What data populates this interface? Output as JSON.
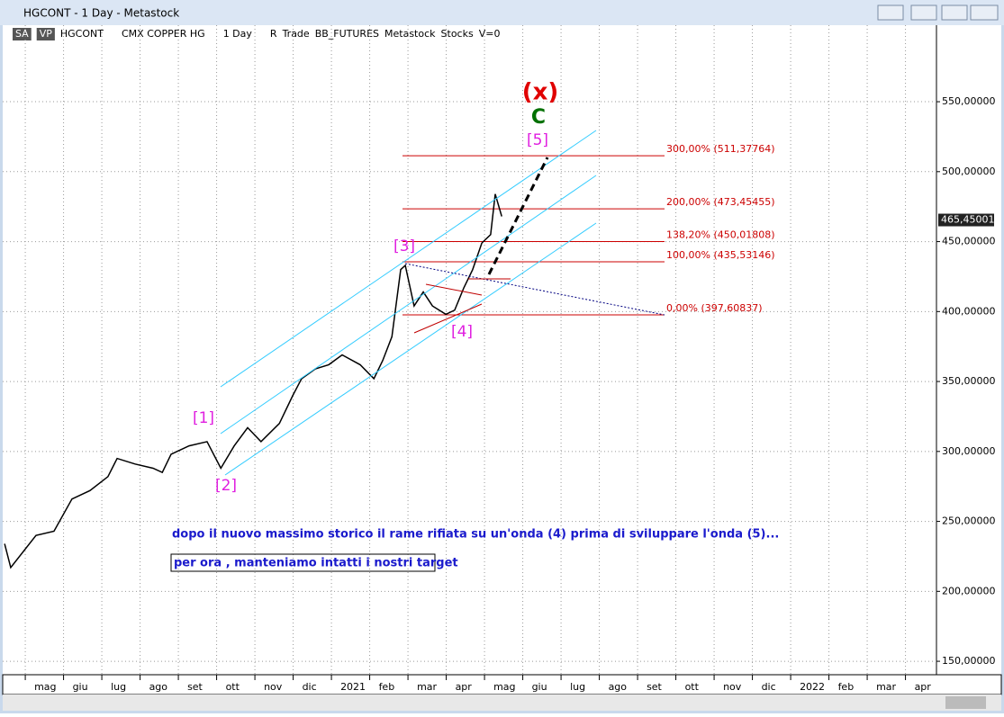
{
  "window": {
    "title": "HGCONT - 1 Day - Metastock",
    "toolbar": [
      "SA",
      "VP",
      "HGCONT",
      "CMX COPPER HG",
      "1 Day",
      "R",
      "Trade",
      "BB_FUTURES",
      "Metastock",
      "Stocks",
      "V=0"
    ]
  },
  "chart_data": {
    "type": "line",
    "color": "#000000",
    "x": [
      -0.54,
      -0.38,
      0.28,
      0.75,
      1.22,
      1.69,
      2.16,
      2.4,
      2.87,
      3.34,
      3.58,
      3.81,
      4.28,
      4.75,
      5.11,
      5.46,
      5.81,
      6.16,
      6.64,
      6.99,
      7.22,
      7.58,
      7.93,
      8.28,
      8.75,
      9.11,
      9.34,
      9.58,
      9.81,
      9.93,
      10.16,
      10.4,
      10.64,
      10.99,
      11.22,
      11.46,
      11.69,
      11.93,
      12.16,
      12.28,
      12.45
    ],
    "values": [
      234,
      217,
      240,
      243,
      266,
      272,
      282,
      295,
      291,
      288,
      285,
      298,
      304,
      307,
      288,
      304,
      317,
      307,
      320,
      340,
      352,
      359,
      362,
      369,
      362,
      352,
      365,
      382,
      430,
      433,
      404,
      414,
      404,
      398,
      401,
      417,
      430,
      449,
      455,
      484,
      468
    ],
    "xlim": [
      -0.59,
      23.81
    ],
    "ylim": [
      140.4,
      604.7
    ],
    "xticks": [
      {
        "value": 0,
        "label": "mag"
      },
      {
        "value": 1,
        "label": "giu"
      },
      {
        "value": 2,
        "label": "lug"
      },
      {
        "value": 3,
        "label": "ago"
      },
      {
        "value": 4,
        "label": "set"
      },
      {
        "value": 5,
        "label": "ott"
      },
      {
        "value": 6,
        "label": "nov"
      },
      {
        "value": 7,
        "label": "dic"
      },
      {
        "value": 8,
        "label": "2021"
      },
      {
        "value": 9,
        "label": "feb"
      },
      {
        "value": 10,
        "label": "mar"
      },
      {
        "value": 11,
        "label": "apr"
      },
      {
        "value": 12,
        "label": "mag"
      },
      {
        "value": 13,
        "label": "giu"
      },
      {
        "value": 14,
        "label": "lug"
      },
      {
        "value": 15,
        "label": "ago"
      },
      {
        "value": 16,
        "label": "set"
      },
      {
        "value": 17,
        "label": "ott"
      },
      {
        "value": 18,
        "label": "nov"
      },
      {
        "value": 19,
        "label": "dic"
      },
      {
        "value": 20,
        "label": "2022"
      },
      {
        "value": 21,
        "label": "feb"
      },
      {
        "value": 22,
        "label": "mar"
      },
      {
        "value": 23,
        "label": "apr"
      }
    ],
    "yticks": [
      {
        "value": 150,
        "label": "150,00000"
      },
      {
        "value": 200,
        "label": "200,00000"
      },
      {
        "value": 250,
        "label": "250,00000"
      },
      {
        "value": 300,
        "label": "300,00000"
      },
      {
        "value": 350,
        "label": "350,00000"
      },
      {
        "value": 400,
        "label": "400,00000"
      },
      {
        "value": 450,
        "label": "450,00000"
      },
      {
        "value": 500,
        "label": "500,00000"
      },
      {
        "value": 550,
        "label": "550,00000"
      }
    ],
    "grid": true,
    "last_price": {
      "value": 465.45001,
      "label": "465,45001"
    },
    "fib_levels": [
      {
        "value": 511.37764,
        "label": "300,00% (511,37764)"
      },
      {
        "value": 473.45455,
        "label": "200,00% (473,45455)"
      },
      {
        "value": 450.01808,
        "label": "138,20% (450,01808)"
      },
      {
        "value": 435.53146,
        "label": "100,00% (435,53146)"
      },
      {
        "value": 397.60837,
        "label": "0,00% (397,60837)"
      }
    ],
    "wave_labels": [
      "(x)",
      "C",
      "[5]",
      "[3]",
      "[4]",
      "[1]",
      "[2]"
    ],
    "notes": [
      "dopo il nuovo massimo storico il rame rifiata su un'onda (4) prima di sviluppare l'onda (5)...",
      "per ora , manteniamo intatti i nostri target"
    ]
  }
}
